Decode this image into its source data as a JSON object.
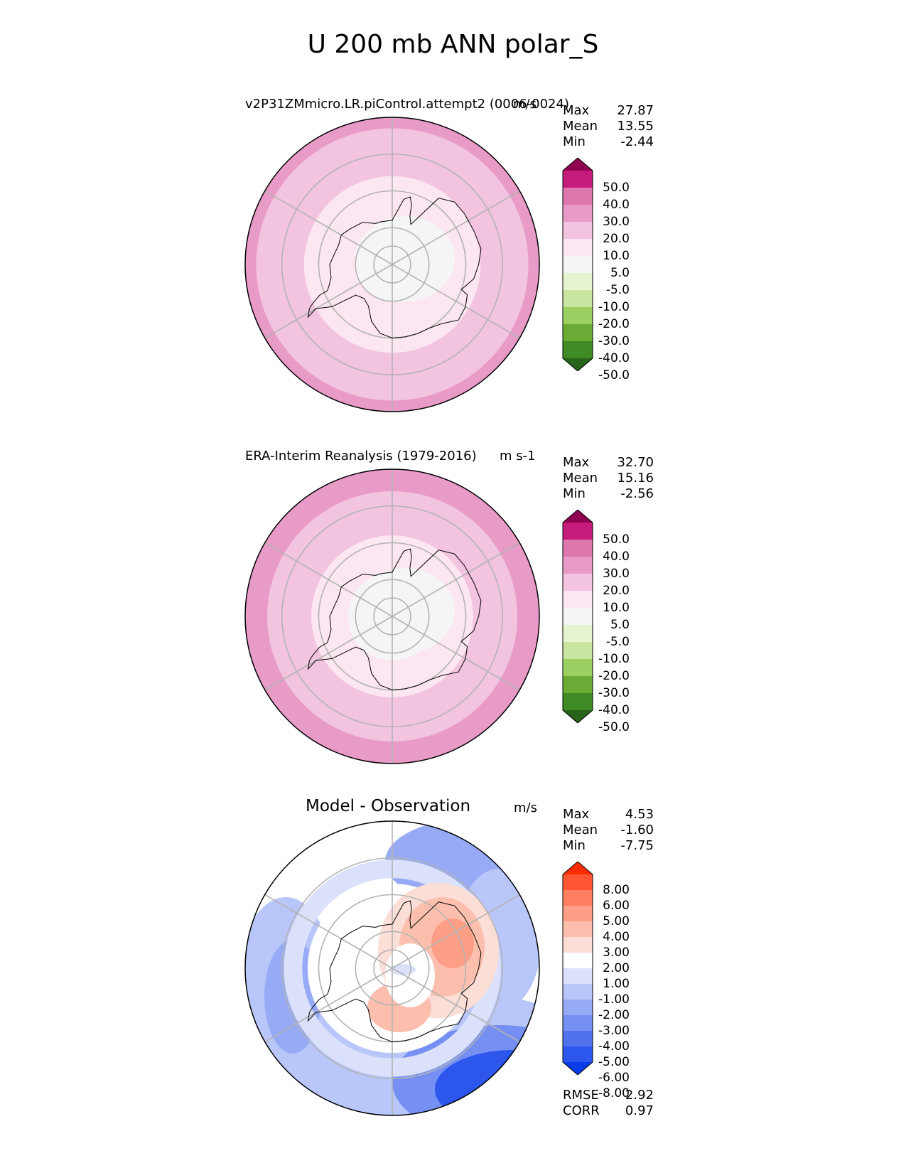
{
  "title": "U 200 mb ANN polar_S",
  "colors": {
    "pink_levels": [
      "#8e0152",
      "#c51b7d",
      "#de77ae",
      "#e99bc7",
      "#f3c4df",
      "#fbe6f1",
      "#f5f5f5",
      "#e6f5d0",
      "#c8e6a0",
      "#9cd063",
      "#6aaa35",
      "#3f8a24",
      "#276419"
    ],
    "diff_levels": [
      "#fe2b02",
      "#fe5633",
      "#fe7e5f",
      "#fd9f86",
      "#fcbfae",
      "#fbded5",
      "#ffffff",
      "#dbe1fb",
      "#b9c6f9",
      "#97aaf6",
      "#758ff3",
      "#5172ef",
      "#2d57ec",
      "#0b3bea"
    ]
  },
  "chart_data": [
    {
      "type": "heatmap",
      "projection": "south polar stereographic",
      "title": "v2P31ZMmicro.LR.piControl.attempt2 (0006-0024)",
      "units": "m/s",
      "stats": {
        "max_label": "Max",
        "max": "27.87",
        "mean_label": "Mean",
        "mean": "13.55",
        "min_label": "Min",
        "min": "-2.44"
      },
      "levels": [
        "50.0",
        "40.0",
        "30.0",
        "20.0",
        "10.0",
        "5.0",
        "-5.0",
        "-10.0",
        "-20.0",
        "-30.0",
        "-40.0",
        "-50.0"
      ],
      "rings": [
        {
          "lat": -50,
          "value": 25
        },
        {
          "lat": -53,
          "value": 18
        },
        {
          "lat": -66,
          "value": 8
        },
        {
          "lat": -80,
          "value": 2
        }
      ]
    },
    {
      "type": "heatmap",
      "projection": "south polar stereographic",
      "title": "ERA-Interim Reanalysis (1979-2016)",
      "units": "m s-1",
      "stats": {
        "max_label": "Max",
        "max": "32.70",
        "mean_label": "Mean",
        "mean": "15.16",
        "min_label": "Min",
        "min": "-2.56"
      },
      "levels": [
        "50.0",
        "40.0",
        "30.0",
        "20.0",
        "10.0",
        "5.0",
        "-5.0",
        "-10.0",
        "-20.0",
        "-30.0",
        "-40.0",
        "-50.0"
      ],
      "rings": [
        {
          "lat": -50,
          "value": 25
        },
        {
          "lat": -56,
          "value": 18
        },
        {
          "lat": -68,
          "value": 8
        },
        {
          "lat": -78,
          "value": 2
        }
      ]
    },
    {
      "type": "heatmap",
      "projection": "south polar stereographic",
      "title": "Model - Observation",
      "units": "m/s",
      "stats": {
        "max_label": "Max",
        "max": "4.53",
        "mean_label": "Mean",
        "mean": "-1.60",
        "min_label": "Min",
        "min": "-7.75"
      },
      "metrics": {
        "rmse_label": "RMSE",
        "rmse": "2.92",
        "corr_label": "CORR",
        "corr": "0.97"
      },
      "levels": [
        "8.00",
        "6.00",
        "5.00",
        "4.00",
        "3.00",
        "2.00",
        "1.00",
        "-1.00",
        "-2.00",
        "-3.00",
        "-4.00",
        "-5.00",
        "-6.00",
        "-8.00"
      ]
    }
  ]
}
